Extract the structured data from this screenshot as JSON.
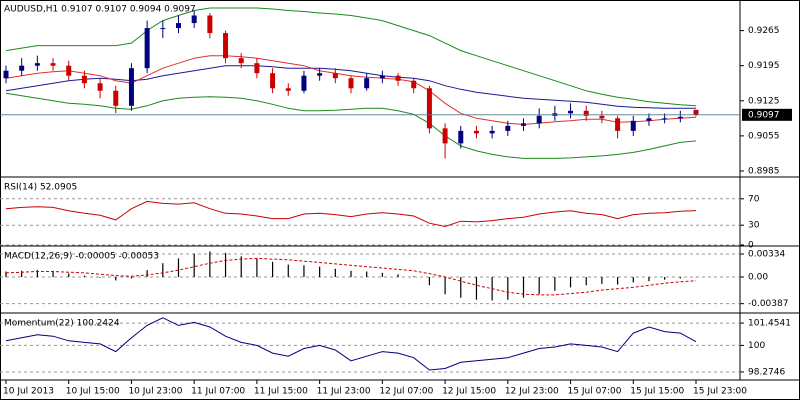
{
  "chart_data": [
    {
      "type": "candlestick",
      "title": "AUDUSD,H1  0.9107 0.9107 0.9094 0.9097",
      "categories": [
        "10 Jul 2013",
        null,
        null,
        null,
        "10 Jul 15:00",
        null,
        null,
        null,
        "10 Jul 23:00",
        null,
        null,
        null,
        "11 Jul 07:00",
        null,
        null,
        null,
        "11 Jul 15:00",
        null,
        null,
        null,
        "11 Jul 23:00",
        null,
        null,
        null,
        "12 Jul 07:00",
        null,
        null,
        null,
        "12 Jul 15:00",
        null,
        null,
        null,
        "12 Jul 23:00",
        null,
        null,
        null,
        "15 Jul 07:00",
        null,
        null,
        null,
        "15 Jul 15:00",
        null,
        null,
        null,
        "15 Jul 23:00"
      ],
      "open": [
        0.917,
        0.9185,
        0.9195,
        0.92,
        0.9195,
        0.9175,
        0.916,
        0.9145,
        0.9115,
        0.919,
        0.927,
        0.927,
        0.928,
        0.9295,
        0.926,
        0.921,
        0.92,
        0.918,
        0.915,
        0.9145,
        0.9175,
        0.918,
        0.917,
        0.915,
        0.917,
        0.9175,
        0.9165,
        0.915,
        0.907,
        0.904,
        0.9065,
        0.906,
        0.9065,
        0.9075,
        0.908,
        0.9095,
        0.91,
        0.9105,
        0.9095,
        0.909,
        0.9065,
        0.9085,
        0.909,
        0.909,
        0.9107
      ],
      "high": [
        0.9195,
        0.921,
        0.9215,
        0.921,
        0.9205,
        0.9185,
        0.917,
        0.9155,
        0.92,
        0.9285,
        0.9285,
        0.9295,
        0.9305,
        0.93,
        0.9265,
        0.922,
        0.921,
        0.919,
        0.916,
        0.9185,
        0.919,
        0.919,
        0.9175,
        0.918,
        0.9185,
        0.918,
        0.917,
        0.9155,
        0.908,
        0.9075,
        0.9075,
        0.9075,
        0.9085,
        0.909,
        0.911,
        0.9115,
        0.912,
        0.9115,
        0.9105,
        0.9095,
        0.9095,
        0.91,
        0.91,
        0.9105,
        0.9107
      ],
      "low": [
        0.916,
        0.9175,
        0.9185,
        0.9185,
        0.9165,
        0.915,
        0.913,
        0.91,
        0.9105,
        0.918,
        0.925,
        0.926,
        0.927,
        0.925,
        0.92,
        0.919,
        0.917,
        0.914,
        0.9135,
        0.914,
        0.9165,
        0.916,
        0.914,
        0.9145,
        0.916,
        0.9155,
        0.914,
        0.906,
        0.901,
        0.903,
        0.905,
        0.905,
        0.9055,
        0.9065,
        0.907,
        0.9085,
        0.909,
        0.9085,
        0.908,
        0.905,
        0.9055,
        0.9075,
        0.908,
        0.9082,
        0.9094
      ],
      "close": [
        0.9185,
        0.9195,
        0.92,
        0.9195,
        0.9175,
        0.916,
        0.9145,
        0.9115,
        0.919,
        0.927,
        0.927,
        0.928,
        0.9295,
        0.926,
        0.921,
        0.92,
        0.918,
        0.915,
        0.9145,
        0.9175,
        0.918,
        0.917,
        0.915,
        0.917,
        0.9175,
        0.9165,
        0.915,
        0.907,
        0.904,
        0.9065,
        0.906,
        0.9065,
        0.9075,
        0.908,
        0.9095,
        0.91,
        0.9105,
        0.9095,
        0.909,
        0.9065,
        0.9085,
        0.909,
        0.909,
        0.9093,
        0.9097
      ],
      "up_color": "#000080",
      "down_color": "#cc0000",
      "overlays": [
        {
          "color": "#1a8a1a",
          "values": [
            0.9225,
            0.923,
            0.9235,
            0.9235,
            0.9235,
            0.9235,
            0.9235,
            0.9235,
            0.924,
            0.9265,
            0.9285,
            0.9295,
            0.9305,
            0.931,
            0.931,
            0.931,
            0.931,
            0.9308,
            0.9305,
            0.9303,
            0.93,
            0.9298,
            0.9295,
            0.929,
            0.9285,
            0.9275,
            0.9265,
            0.9255,
            0.924,
            0.9225,
            0.9215,
            0.9205,
            0.9195,
            0.9185,
            0.9175,
            0.9165,
            0.9155,
            0.9145,
            0.9138,
            0.9132,
            0.9128,
            0.9123,
            0.912,
            0.9117,
            0.9115
          ]
        },
        {
          "color": "#1a8a1a",
          "values": [
            0.914,
            0.9135,
            0.913,
            0.9125,
            0.912,
            0.9118,
            0.9115,
            0.911,
            0.9108,
            0.9115,
            0.9125,
            0.913,
            0.9132,
            0.9133,
            0.9132,
            0.913,
            0.9125,
            0.9118,
            0.911,
            0.9105,
            0.9105,
            0.9106,
            0.9108,
            0.911,
            0.911,
            0.9105,
            0.9098,
            0.908,
            0.9055,
            0.9035,
            0.9025,
            0.9018,
            0.9013,
            0.901,
            0.901,
            0.901,
            0.9011,
            0.9013,
            0.9015,
            0.9018,
            0.9022,
            0.9028,
            0.9035,
            0.9042,
            0.9045
          ]
        },
        {
          "color": "#1a1a9a",
          "values": [
            0.9145,
            0.915,
            0.9155,
            0.916,
            0.9165,
            0.9168,
            0.917,
            0.9168,
            0.9165,
            0.9168,
            0.9175,
            0.918,
            0.9185,
            0.919,
            0.9195,
            0.9195,
            0.9195,
            0.9193,
            0.919,
            0.919,
            0.919,
            0.9188,
            0.9185,
            0.918,
            0.9175,
            0.9172,
            0.917,
            0.9165,
            0.9155,
            0.9148,
            0.9142,
            0.9138,
            0.9134,
            0.913,
            0.9128,
            0.9126,
            0.9124,
            0.9122,
            0.9118,
            0.9114,
            0.9112,
            0.9111,
            0.911,
            0.911,
            0.911
          ]
        },
        {
          "color": "#e03030",
          "values": [
            0.917,
            0.9175,
            0.918,
            0.9183,
            0.9185,
            0.918,
            0.9175,
            0.9165,
            0.916,
            0.9175,
            0.919,
            0.92,
            0.921,
            0.9215,
            0.9215,
            0.9213,
            0.921,
            0.9205,
            0.92,
            0.9195,
            0.9185,
            0.918,
            0.9175,
            0.9172,
            0.917,
            0.9168,
            0.9163,
            0.9145,
            0.912,
            0.91,
            0.909,
            0.9085,
            0.908,
            0.9078,
            0.908,
            0.9083,
            0.9085,
            0.9088,
            0.9088,
            0.9082,
            0.9083,
            0.9085,
            0.9088,
            0.909,
            0.9092
          ]
        }
      ],
      "last_price": 0.9097,
      "ylim": [
        0.8973,
        0.9324
      ],
      "yticks": [
        0.9265,
        0.9195,
        0.9125,
        0.9055,
        0.8985
      ]
    },
    {
      "type": "line",
      "title": "RSI(14) 52.0905",
      "color": "#cc0000",
      "values": [
        55,
        57,
        58,
        57,
        52,
        48,
        45,
        38,
        55,
        66,
        63,
        62,
        64,
        55,
        48,
        47,
        44,
        40,
        40,
        47,
        48,
        46,
        43,
        47,
        49,
        47,
        44,
        33,
        28,
        36,
        35,
        37,
        40,
        42,
        47,
        50,
        52,
        48,
        46,
        40,
        46,
        48,
        49,
        51,
        52.0905
      ],
      "ylim": [
        0,
        100
      ],
      "yticks": [
        70,
        30,
        0
      ],
      "grid": true
    },
    {
      "type": "bar",
      "title": "MACD(12,26,9) -0.00005 -0.00053",
      "color": "#000000",
      "values": [
        0.0008,
        0.0009,
        0.001,
        0.0009,
        0.0005,
        0.0002,
        -0.0001,
        -0.0005,
        -0.0002,
        0.001,
        0.002,
        0.0027,
        0.0034,
        0.0037,
        0.0035,
        0.003,
        0.0027,
        0.0022,
        0.0018,
        0.0017,
        0.0015,
        0.0012,
        0.0009,
        0.0008,
        0.0006,
        0.0004,
        0.0001,
        -0.0012,
        -0.0025,
        -0.003,
        -0.0033,
        -0.0034,
        -0.0033,
        -0.003,
        -0.0025,
        -0.002,
        -0.0015,
        -0.0012,
        -0.001,
        -0.0011,
        -0.0008,
        -0.0006,
        -0.0004,
        -0.0002,
        -5e-05
      ],
      "signal": {
        "color": "#cc0000",
        "values": [
          0.0006,
          0.0007,
          0.0008,
          0.0008,
          0.0007,
          0.0006,
          0.0004,
          0.0002,
          0.0001,
          0.0003,
          0.0006,
          0.001,
          0.0015,
          0.002,
          0.0024,
          0.0026,
          0.0027,
          0.0026,
          0.0025,
          0.0023,
          0.0021,
          0.0019,
          0.0017,
          0.0015,
          0.0013,
          0.0011,
          0.0009,
          0.0005,
          0.0,
          -0.0006,
          -0.0012,
          -0.0017,
          -0.0022,
          -0.0025,
          -0.0026,
          -0.0026,
          -0.0024,
          -0.0022,
          -0.0019,
          -0.0017,
          -0.0015,
          -0.0012,
          -0.0009,
          -0.0007,
          -0.00053
        ]
      },
      "ylim": [
        -0.00508,
        0.00421
      ],
      "yticks": [
        0.00334,
        {
          "value": 0,
          "label": "0.00"
        },
        -0.00387
      ],
      "grid": true
    },
    {
      "type": "line",
      "title": "Momentum(22) 100.2424",
      "color": "#000080",
      "values": [
        100.3,
        100.5,
        100.7,
        100.6,
        100.3,
        100.2,
        100.1,
        99.6,
        100.5,
        101.3,
        101.8,
        101.3,
        101.5,
        101.2,
        100.6,
        100.2,
        100.0,
        99.5,
        99.3,
        99.8,
        100.0,
        99.7,
        99.0,
        99.3,
        99.6,
        99.5,
        99.2,
        98.4,
        98.5,
        98.9,
        99.0,
        99.1,
        99.2,
        99.5,
        99.8,
        99.9,
        100.1,
        100.0,
        99.9,
        99.6,
        100.8,
        101.2,
        100.9,
        100.8,
        100.2424
      ],
      "ylim": [
        97.75,
        101.98
      ],
      "yticks": [
        101.4541,
        100,
        98.2746
      ],
      "grid": true
    }
  ]
}
